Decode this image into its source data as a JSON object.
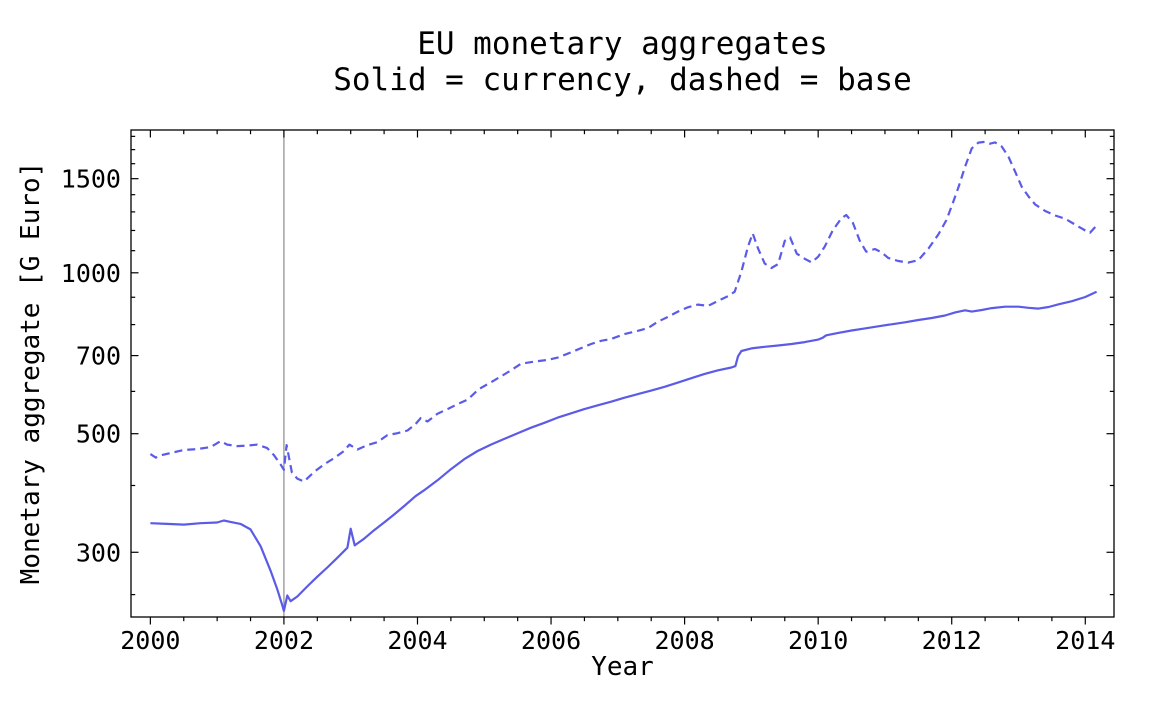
{
  "header": {
    "title": "EU monetary aggregates",
    "subtitle": "Solid = currency, dashed = base"
  },
  "axes": {
    "x_label": "Year",
    "y_label": "Monetary aggregate [G Euro]"
  },
  "colors": {
    "series_line": "#5b5be8",
    "frame": "#000000",
    "reference_line": "#8a8a8a",
    "background": "#ffffff"
  },
  "chart_data": {
    "type": "line",
    "title": "EU monetary aggregates",
    "subtitle": "Solid = currency, dashed = base",
    "xlabel": "Year",
    "ylabel": "Monetary aggregate [G Euro]",
    "y_scale": "log",
    "grid": false,
    "legend": "none (styles explained in subtitle: solid = currency, dashed = base)",
    "x_range": [
      1999.71,
      2014.43
    ],
    "y_range": [
      227,
      1850
    ],
    "x_ticks_major": [
      2000,
      2002,
      2004,
      2006,
      2008,
      2010,
      2012,
      2014
    ],
    "x_ticks_minor": [
      2000.5,
      2001,
      2001.5,
      2002.5,
      2003,
      2003.5,
      2004.5,
      2005,
      2005.5,
      2006.5,
      2007,
      2007.5,
      2008.5,
      2009,
      2009.5,
      2010.5,
      2011,
      2011.5,
      2012.5,
      2013,
      2013.5
    ],
    "y_ticks_major": [
      300,
      500,
      700,
      1000,
      1500
    ],
    "y_ticks_minor": [
      250,
      400,
      600,
      800,
      900,
      1100,
      1200,
      1300,
      1400,
      1600,
      1700,
      1800
    ],
    "reference_line": {
      "x": 2002,
      "color": "#8a8a8a"
    },
    "series": [
      {
        "name": "currency",
        "line_style": "solid",
        "color": "#5b5be8",
        "points": [
          [
            2000.0,
            340
          ],
          [
            2000.25,
            339
          ],
          [
            2000.5,
            338
          ],
          [
            2000.75,
            340
          ],
          [
            2001.0,
            341
          ],
          [
            2001.1,
            344
          ],
          [
            2001.2,
            342
          ],
          [
            2001.35,
            339
          ],
          [
            2001.5,
            331
          ],
          [
            2001.65,
            308
          ],
          [
            2001.8,
            277
          ],
          [
            2001.9,
            256
          ],
          [
            2001.97,
            240
          ],
          [
            2002.0,
            233
          ],
          [
            2002.05,
            249
          ],
          [
            2002.1,
            243
          ],
          [
            2002.2,
            248
          ],
          [
            2002.35,
            259
          ],
          [
            2002.5,
            270
          ],
          [
            2002.65,
            281
          ],
          [
            2002.8,
            293
          ],
          [
            2002.95,
            306
          ],
          [
            2003.0,
            332
          ],
          [
            2003.06,
            309
          ],
          [
            2003.2,
            318
          ],
          [
            2003.35,
            330
          ],
          [
            2003.5,
            341
          ],
          [
            2003.65,
            353
          ],
          [
            2003.8,
            366
          ],
          [
            2003.97,
            382
          ],
          [
            2004.1,
            392
          ],
          [
            2004.3,
            409
          ],
          [
            2004.5,
            429
          ],
          [
            2004.7,
            448
          ],
          [
            2004.9,
            464
          ],
          [
            2005.1,
            477
          ],
          [
            2005.3,
            489
          ],
          [
            2005.5,
            501
          ],
          [
            2005.7,
            513
          ],
          [
            2005.9,
            524
          ],
          [
            2006.1,
            536
          ],
          [
            2006.3,
            546
          ],
          [
            2006.5,
            556
          ],
          [
            2006.7,
            565
          ],
          [
            2006.9,
            574
          ],
          [
            2007.1,
            584
          ],
          [
            2007.3,
            593
          ],
          [
            2007.5,
            602
          ],
          [
            2007.7,
            612
          ],
          [
            2007.9,
            623
          ],
          [
            2008.1,
            635
          ],
          [
            2008.3,
            647
          ],
          [
            2008.5,
            657
          ],
          [
            2008.7,
            665
          ],
          [
            2008.76,
            669
          ],
          [
            2008.8,
            698
          ],
          [
            2008.85,
            714
          ],
          [
            2009.0,
            722
          ],
          [
            2009.2,
            727
          ],
          [
            2009.4,
            731
          ],
          [
            2009.6,
            736
          ],
          [
            2009.8,
            742
          ],
          [
            2010.0,
            750
          ],
          [
            2010.07,
            756
          ],
          [
            2010.12,
            764
          ],
          [
            2010.3,
            772
          ],
          [
            2010.5,
            780
          ],
          [
            2010.7,
            787
          ],
          [
            2010.9,
            794
          ],
          [
            2011.1,
            801
          ],
          [
            2011.3,
            808
          ],
          [
            2011.5,
            816
          ],
          [
            2011.7,
            823
          ],
          [
            2011.9,
            832
          ],
          [
            2012.05,
            843
          ],
          [
            2012.2,
            851
          ],
          [
            2012.3,
            846
          ],
          [
            2012.45,
            852
          ],
          [
            2012.6,
            859
          ],
          [
            2012.8,
            864
          ],
          [
            2013.0,
            864
          ],
          [
            2013.15,
            860
          ],
          [
            2013.3,
            857
          ],
          [
            2013.45,
            863
          ],
          [
            2013.6,
            873
          ],
          [
            2013.8,
            885
          ],
          [
            2014.0,
            901
          ],
          [
            2014.17,
            922
          ]
        ]
      },
      {
        "name": "base",
        "line_style": "dashed",
        "dash": "8 5",
        "color": "#5b5be8",
        "points": [
          [
            2000.0,
            458
          ],
          [
            2000.08,
            451
          ],
          [
            2000.17,
            456
          ],
          [
            2000.33,
            461
          ],
          [
            2000.5,
            466
          ],
          [
            2000.7,
            468
          ],
          [
            2000.9,
            472
          ],
          [
            2001.05,
            484
          ],
          [
            2001.15,
            477
          ],
          [
            2001.3,
            474
          ],
          [
            2001.45,
            475
          ],
          [
            2001.6,
            477
          ],
          [
            2001.75,
            470
          ],
          [
            2001.85,
            456
          ],
          [
            2001.95,
            438
          ],
          [
            2002.0,
            428
          ],
          [
            2002.04,
            476
          ],
          [
            2002.12,
            423
          ],
          [
            2002.2,
            412
          ],
          [
            2002.3,
            407
          ],
          [
            2002.45,
            424
          ],
          [
            2002.6,
            438
          ],
          [
            2002.75,
            450
          ],
          [
            2002.9,
            464
          ],
          [
            2002.98,
            477
          ],
          [
            2003.1,
            467
          ],
          [
            2003.25,
            476
          ],
          [
            2003.4,
            482
          ],
          [
            2003.55,
            497
          ],
          [
            2003.7,
            501
          ],
          [
            2003.85,
            507
          ],
          [
            2003.97,
            521
          ],
          [
            2004.05,
            535
          ],
          [
            2004.15,
            527
          ],
          [
            2004.3,
            545
          ],
          [
            2004.45,
            556
          ],
          [
            2004.6,
            568
          ],
          [
            2004.75,
            579
          ],
          [
            2004.92,
            606
          ],
          [
            2005.1,
            624
          ],
          [
            2005.25,
            640
          ],
          [
            2005.4,
            657
          ],
          [
            2005.55,
            676
          ],
          [
            2005.75,
            682
          ],
          [
            2005.95,
            687
          ],
          [
            2006.1,
            694
          ],
          [
            2006.3,
            710
          ],
          [
            2006.45,
            723
          ],
          [
            2006.6,
            736
          ],
          [
            2006.75,
            746
          ],
          [
            2006.9,
            752
          ],
          [
            2007.1,
            768
          ],
          [
            2007.3,
            779
          ],
          [
            2007.45,
            788
          ],
          [
            2007.6,
            810
          ],
          [
            2007.75,
            827
          ],
          [
            2007.9,
            846
          ],
          [
            2008.05,
            862
          ],
          [
            2008.2,
            872
          ],
          [
            2008.35,
            867
          ],
          [
            2008.5,
            886
          ],
          [
            2008.65,
            904
          ],
          [
            2008.75,
            922
          ],
          [
            2008.85,
            1005
          ],
          [
            2008.95,
            1120
          ],
          [
            2009.02,
            1185
          ],
          [
            2009.1,
            1110
          ],
          [
            2009.2,
            1041
          ],
          [
            2009.3,
            1021
          ],
          [
            2009.4,
            1038
          ],
          [
            2009.5,
            1148
          ],
          [
            2009.58,
            1165
          ],
          [
            2009.68,
            1086
          ],
          [
            2009.8,
            1062
          ],
          [
            2009.9,
            1046
          ],
          [
            2010.0,
            1072
          ],
          [
            2010.1,
            1120
          ],
          [
            2010.22,
            1202
          ],
          [
            2010.35,
            1265
          ],
          [
            2010.42,
            1283
          ],
          [
            2010.52,
            1240
          ],
          [
            2010.62,
            1150
          ],
          [
            2010.72,
            1095
          ],
          [
            2010.85,
            1108
          ],
          [
            2010.95,
            1092
          ],
          [
            2011.05,
            1066
          ],
          [
            2011.2,
            1052
          ],
          [
            2011.35,
            1045
          ],
          [
            2011.5,
            1056
          ],
          [
            2011.65,
            1110
          ],
          [
            2011.8,
            1180
          ],
          [
            2011.92,
            1255
          ],
          [
            2012.02,
            1355
          ],
          [
            2012.1,
            1445
          ],
          [
            2012.2,
            1580
          ],
          [
            2012.3,
            1710
          ],
          [
            2012.4,
            1752
          ],
          [
            2012.5,
            1758
          ],
          [
            2012.57,
            1744
          ],
          [
            2012.65,
            1754
          ],
          [
            2012.75,
            1722
          ],
          [
            2012.85,
            1648
          ],
          [
            2012.95,
            1545
          ],
          [
            2013.05,
            1448
          ],
          [
            2013.15,
            1390
          ],
          [
            2013.25,
            1342
          ],
          [
            2013.4,
            1305
          ],
          [
            2013.55,
            1280
          ],
          [
            2013.7,
            1262
          ],
          [
            2013.85,
            1230
          ],
          [
            2014.0,
            1200
          ],
          [
            2014.07,
            1188
          ],
          [
            2014.17,
            1226
          ]
        ]
      }
    ]
  }
}
